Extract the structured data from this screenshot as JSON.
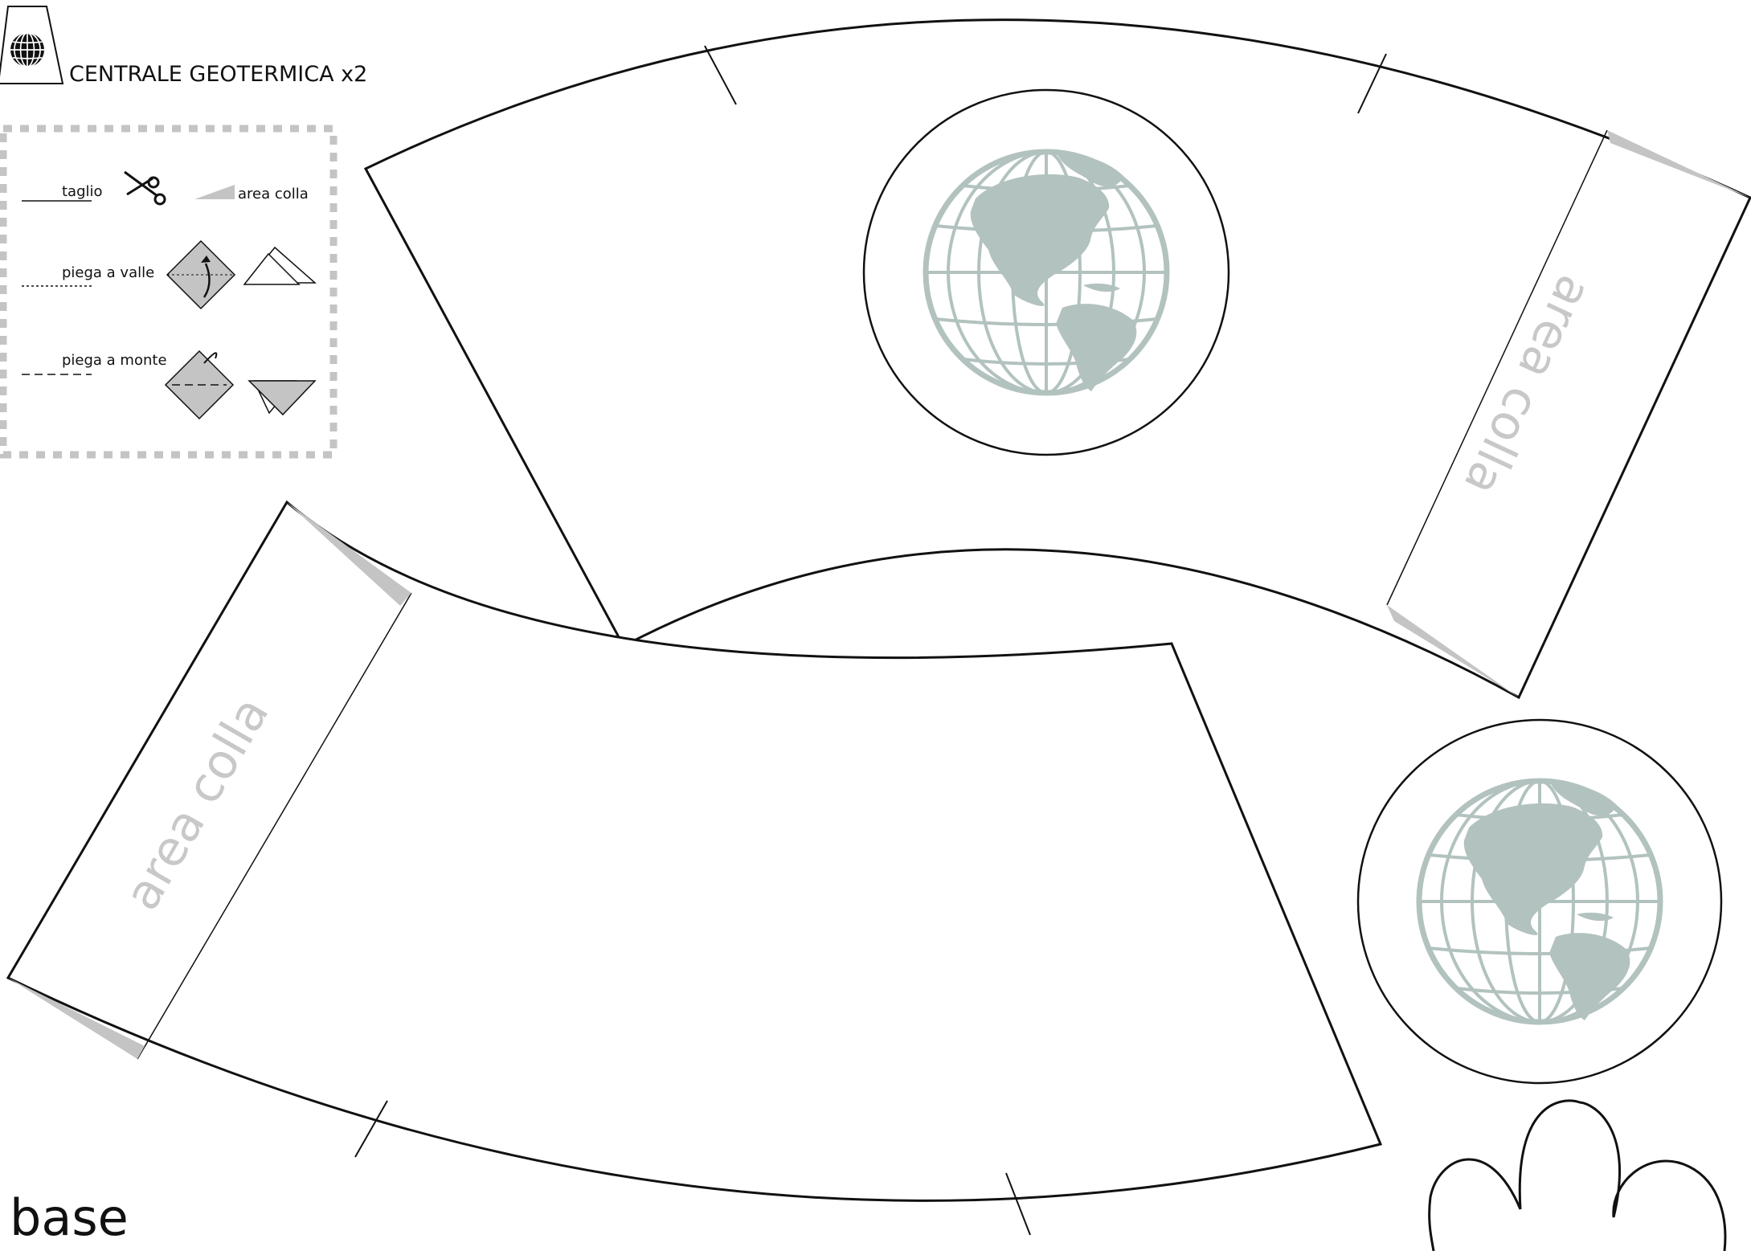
{
  "header": {
    "title": "CENTRALE GEOTERMICA x2",
    "icon": "globe-icon"
  },
  "legend": {
    "cut_label": "taglio",
    "glue_label": "area colla",
    "valley_fold_label": "piega a valle",
    "mountain_fold_label": "piega a monte"
  },
  "pieces": {
    "glue_area_label": "area colla",
    "base_label": "base"
  },
  "colors": {
    "line": "#111111",
    "glue": "#c4c4c4",
    "globe": "#b2c2bf",
    "glue_text": "#c8c8c8"
  }
}
